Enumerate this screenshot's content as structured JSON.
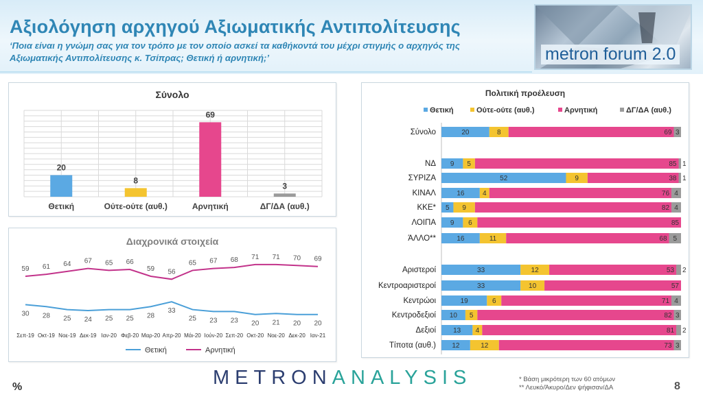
{
  "header": {
    "title": "Αξιολόγηση αρχηγού Αξιωματικής Αντιπολίτευσης",
    "question": "‘Ποια είναι η γνώμη σας για τον τρόπο με τον οποίο ασκεί τα καθήκοντά του μέχρι στιγμής ο αρχηγός της Αξιωματικής Αντιπολίτευσης κ. Τσίπρας; Θετική ή αρνητική;’",
    "logo_text": "metron forum 2.0"
  },
  "colors": {
    "positive": "#5ba9e3",
    "neutral": "#f4c430",
    "negative": "#e6478d",
    "dk": "#9b9b9b",
    "title": "#2f86b5",
    "pos_line": "#4a9fd8",
    "neg_line": "#c2328a"
  },
  "chart_data": [
    {
      "type": "bar",
      "title": "Σύνολο",
      "categories": [
        "Θετική",
        "Ούτε-ούτε (αυθ.)",
        "Αρνητική",
        "ΔΓ/ΔΑ (αυθ.)"
      ],
      "values": [
        20,
        8,
        69,
        3
      ],
      "ylim": [
        0,
        80
      ],
      "grid": true
    },
    {
      "type": "line",
      "title": "Διαχρονικά στοιχεία",
      "x": [
        "Σεπ-19",
        "Οκτ-19",
        "Νοε-19",
        "Δεκ-19",
        "Ιαν-20",
        "Φεβ-20",
        "Μαρ-20",
        "Απρ-20",
        "Μάι-20",
        "Ιούν-20",
        "Σεπ-20",
        "Οκτ-20",
        "Νοε-20",
        "Δεκ-20",
        "Ιαν-21"
      ],
      "series": [
        {
          "name": "Θετική",
          "values": [
            30,
            28,
            25,
            24,
            25,
            25,
            28,
            33,
            25,
            23,
            23,
            20,
            21,
            20,
            20
          ]
        },
        {
          "name": "Αρνητική",
          "values": [
            59,
            61,
            64,
            67,
            65,
            66,
            59,
            56,
            65,
            67,
            68,
            71,
            71,
            70,
            69
          ]
        }
      ],
      "ylim": [
        0,
        100
      ],
      "legend": "bottom"
    },
    {
      "type": "bar",
      "orientation": "horizontal",
      "stacked": true,
      "title": "Πολιτική προέλευση",
      "legend": "top",
      "series_names": [
        "Θετική",
        "Ούτε-ούτε (αυθ.)",
        "Αρνητική",
        "ΔΓ/ΔΑ (αυθ.)"
      ],
      "rows": [
        {
          "label": "Σύνολο",
          "values": [
            20,
            8,
            69,
            3
          ]
        },
        {
          "label": "ΝΔ",
          "values": [
            9,
            5,
            85,
            1
          ]
        },
        {
          "label": "ΣΥΡΙΖΑ",
          "values": [
            52,
            9,
            38,
            1
          ]
        },
        {
          "label": "ΚΙΝΑΛ",
          "values": [
            16,
            4,
            76,
            4
          ]
        },
        {
          "label": "ΚΚΕ*",
          "values": [
            5,
            9,
            82,
            4
          ]
        },
        {
          "label": "ΛΟΙΠΑ",
          "values": [
            9,
            6,
            85,
            0
          ]
        },
        {
          "label": "ΆΛΛΟ**",
          "values": [
            16,
            11,
            68,
            5
          ]
        },
        {
          "label": "Αριστεροί",
          "values": [
            33,
            12,
            53,
            2
          ]
        },
        {
          "label": "Κεντροαριστεροί",
          "values": [
            33,
            10,
            57,
            0
          ]
        },
        {
          "label": "Κεντρώοι",
          "values": [
            19,
            6,
            71,
            4
          ]
        },
        {
          "label": "Κεντροδεξιοί",
          "values": [
            10,
            5,
            82,
            3
          ]
        },
        {
          "label": "Δεξιοί",
          "values": [
            13,
            4,
            81,
            2
          ]
        },
        {
          "label": "Τίποτα (αυθ.)",
          "values": [
            12,
            12,
            73,
            3
          ]
        }
      ],
      "xlim": [
        0,
        100
      ]
    }
  ],
  "footer": {
    "percent_sign": "%",
    "brand_left": "METRON",
    "brand_right": "ANALYSIS",
    "note1": "*  Βάση μικρότερη των 60 ατόμων",
    "note2": "** Λευκό/Άκυρο/Δεν ψήφισαν/ΔΑ",
    "page": "8"
  }
}
